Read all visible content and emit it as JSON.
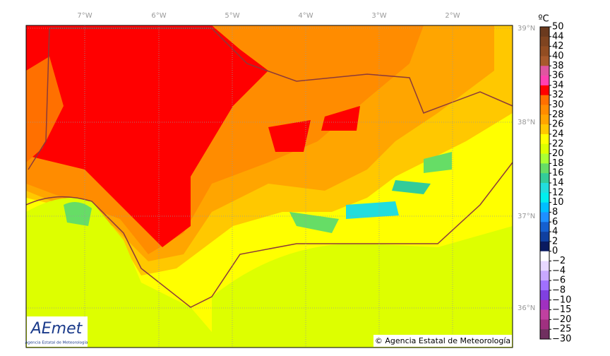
{
  "map": {
    "longitude_labels": [
      "7°W",
      "6°W",
      "5°W",
      "4°W",
      "3°W",
      "2°W"
    ],
    "latitude_labels": [
      "39°N",
      "38°N",
      "37°N",
      "36°N"
    ],
    "colorbar": {
      "unit": "ºC",
      "labels": [
        "50",
        "44",
        "42",
        "40",
        "38",
        "36",
        "34",
        "32",
        "30",
        "28",
        "26",
        "24",
        "22",
        "20",
        "18",
        "16",
        "14",
        "12",
        "10",
        "8",
        "6",
        "4",
        "2",
        "0",
        "−2",
        "−4",
        "−6",
        "−8",
        "−10",
        "−15",
        "−20",
        "−25",
        "−30"
      ],
      "colors": [
        "#6b3a1e",
        "#7f4420",
        "#924d22",
        "#a85a2c",
        "#e055a0",
        "#ff40b0",
        "#ff0000",
        "#ff7000",
        "#ff8c00",
        "#ffa500",
        "#ffc800",
        "#ffff00",
        "#ddff00",
        "#aaff33",
        "#66dd66",
        "#33cc99",
        "#22dddd",
        "#00eeee",
        "#00bfff",
        "#1e90ff",
        "#1560d0",
        "#1040a0",
        "#0a1a60",
        "#ffffff",
        "#e8d8ff",
        "#c8a8ff",
        "#a070ff",
        "#8040e0",
        "#a030c0",
        "#c040a0",
        "#a03080",
        "#703060"
      ]
    },
    "copyright": "© Agencia Estatal de Meteorología",
    "logo": {
      "name": "AEmet",
      "subtitle": "Agencia Estatal de Meteorología"
    }
  }
}
